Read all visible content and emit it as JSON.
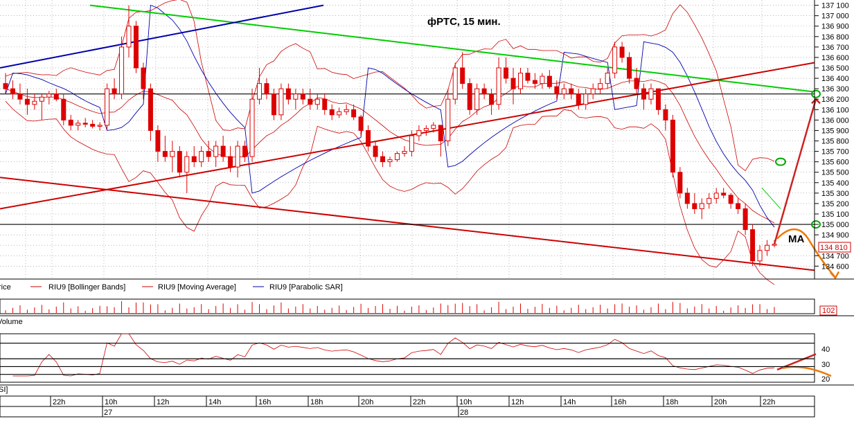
{
  "chart_data": [
    {
      "type": "candlestick",
      "title": "фРТС,  15 мин.",
      "y_axis": {
        "range": [
          134520,
          137120
        ],
        "ticks": [
          "137 100",
          "137 000",
          "136 900",
          "136 800",
          "136 700",
          "136 600",
          "136 500",
          "136 400",
          "136 300",
          "136 200",
          "136 100",
          "136 000",
          "135 900",
          "135 800",
          "135 700",
          "135 600",
          "135 500",
          "135 400",
          "135 300",
          "135 200",
          "135 100",
          "135 000",
          "134 900",
          "134 810",
          "134 700",
          "134 600"
        ],
        "current_price_label": "134 810",
        "current_price": 134810
      },
      "legend": [
        {
          "label": "rice",
          "color": "#cc0000"
        },
        {
          "label": "RIU9 [Bollinger Bands]",
          "color": "#cc0000"
        },
        {
          "label": "RIU9 [Moving Average]",
          "color": "#cc0000"
        },
        {
          "label": "RIU9 [Parabolic SAR]",
          "color": "#0000aa"
        }
      ],
      "annotation": "MA",
      "series": [
        {
          "name": "RIU9 [Moving Average]",
          "color": "#cc0000",
          "kind": "line",
          "close_approx": [
            136400,
            136300,
            136250,
            136200,
            136150,
            136100,
            136050,
            136000,
            136000,
            135950,
            135900,
            135900,
            136000,
            136100,
            136200,
            136250,
            136250,
            136300,
            136350,
            136350,
            136300,
            136250,
            136200,
            136150,
            136100,
            136000,
            135950,
            135900,
            135850,
            135800,
            135780,
            135760,
            135750,
            135760,
            135780,
            135800,
            135820,
            135850,
            135900,
            135950,
            136000,
            136050,
            136100,
            136150,
            136200,
            136200,
            136200,
            136220,
            136200,
            136180,
            136160,
            136150,
            136130,
            136110,
            136100,
            136080,
            136050,
            136000,
            135900,
            135800,
            135650,
            135500,
            135400,
            135300,
            135200,
            135150,
            135100,
            135050,
            135000,
            134950,
            134900,
            134850
          ]
        }
      ],
      "ohlc": [
        {
          "o": 136350,
          "h": 136450,
          "l": 136250,
          "c": 136300
        },
        {
          "o": 136300,
          "h": 136380,
          "l": 136200,
          "c": 136250
        },
        {
          "o": 136250,
          "h": 136350,
          "l": 136150,
          "c": 136200
        },
        {
          "o": 136200,
          "h": 136300,
          "l": 136050,
          "c": 136150
        },
        {
          "o": 136150,
          "h": 136250,
          "l": 136100,
          "c": 136180
        },
        {
          "o": 136180,
          "h": 136250,
          "l": 136000,
          "c": 136220
        },
        {
          "o": 136220,
          "h": 136280,
          "l": 136150,
          "c": 136250
        },
        {
          "o": 136250,
          "h": 136300,
          "l": 136180,
          "c": 136200
        },
        {
          "o": 136200,
          "h": 136250,
          "l": 135950,
          "c": 136000
        },
        {
          "o": 136000,
          "h": 136050,
          "l": 135900,
          "c": 135950
        },
        {
          "o": 135950,
          "h": 136000,
          "l": 135900,
          "c": 135970
        },
        {
          "o": 135970,
          "h": 136020,
          "l": 135930,
          "c": 135960
        },
        {
          "o": 135960,
          "h": 136000,
          "l": 135920,
          "c": 135940
        },
        {
          "o": 135940,
          "h": 135980,
          "l": 135900,
          "c": 135950
        },
        {
          "o": 135950,
          "h": 136350,
          "l": 135900,
          "c": 136300
        },
        {
          "o": 136300,
          "h": 136400,
          "l": 136200,
          "c": 136250
        },
        {
          "o": 136250,
          "h": 136800,
          "l": 136200,
          "c": 136700
        },
        {
          "o": 136700,
          "h": 137100,
          "l": 136600,
          "c": 136900
        },
        {
          "o": 136900,
          "h": 136950,
          "l": 136450,
          "c": 136500
        },
        {
          "o": 136500,
          "h": 136550,
          "l": 136200,
          "c": 136300
        },
        {
          "o": 136300,
          "h": 136350,
          "l": 135800,
          "c": 135900
        },
        {
          "o": 135900,
          "h": 135950,
          "l": 135600,
          "c": 135700
        },
        {
          "o": 135700,
          "h": 135850,
          "l": 135600,
          "c": 135650
        },
        {
          "o": 135650,
          "h": 135800,
          "l": 135500,
          "c": 135700
        },
        {
          "o": 135700,
          "h": 135750,
          "l": 135450,
          "c": 135500
        },
        {
          "o": 135500,
          "h": 135700,
          "l": 135300,
          "c": 135650
        },
        {
          "o": 135650,
          "h": 135750,
          "l": 135550,
          "c": 135600
        },
        {
          "o": 135600,
          "h": 135750,
          "l": 135550,
          "c": 135700
        },
        {
          "o": 135700,
          "h": 135800,
          "l": 135600,
          "c": 135650
        },
        {
          "o": 135650,
          "h": 135800,
          "l": 135550,
          "c": 135750
        },
        {
          "o": 135750,
          "h": 135850,
          "l": 135600,
          "c": 135650
        },
        {
          "o": 135650,
          "h": 135750,
          "l": 135500,
          "c": 135550
        },
        {
          "o": 135550,
          "h": 135800,
          "l": 135450,
          "c": 135750
        },
        {
          "o": 135750,
          "h": 135800,
          "l": 135600,
          "c": 135650
        },
        {
          "o": 135650,
          "h": 136300,
          "l": 135600,
          "c": 136200
        },
        {
          "o": 136200,
          "h": 136500,
          "l": 136150,
          "c": 136350
        },
        {
          "o": 136350,
          "h": 136400,
          "l": 136200,
          "c": 136250
        },
        {
          "o": 136250,
          "h": 136300,
          "l": 136000,
          "c": 136050
        },
        {
          "o": 136050,
          "h": 136350,
          "l": 136000,
          "c": 136300
        },
        {
          "o": 136300,
          "h": 136350,
          "l": 136150,
          "c": 136200
        },
        {
          "o": 136200,
          "h": 136300,
          "l": 136100,
          "c": 136250
        },
        {
          "o": 136250,
          "h": 136300,
          "l": 136150,
          "c": 136200
        },
        {
          "o": 136200,
          "h": 136300,
          "l": 136100,
          "c": 136150
        },
        {
          "o": 136150,
          "h": 136250,
          "l": 136100,
          "c": 136200
        },
        {
          "o": 136200,
          "h": 136250,
          "l": 136050,
          "c": 136100
        },
        {
          "o": 136100,
          "h": 136150,
          "l": 136000,
          "c": 136050
        },
        {
          "o": 136050,
          "h": 136120,
          "l": 136020,
          "c": 136080
        },
        {
          "o": 136080,
          "h": 136150,
          "l": 136050,
          "c": 136100
        },
        {
          "o": 136100,
          "h": 136150,
          "l": 136000,
          "c": 136030
        },
        {
          "o": 136030,
          "h": 136050,
          "l": 135850,
          "c": 135900
        },
        {
          "o": 135900,
          "h": 135950,
          "l": 135700,
          "c": 135750
        },
        {
          "o": 135750,
          "h": 135800,
          "l": 135600,
          "c": 135650
        },
        {
          "o": 135650,
          "h": 135700,
          "l": 135550,
          "c": 135600
        },
        {
          "o": 135600,
          "h": 135650,
          "l": 135550,
          "c": 135620
        },
        {
          "o": 135620,
          "h": 135700,
          "l": 135600,
          "c": 135680
        },
        {
          "o": 135680,
          "h": 135750,
          "l": 135650,
          "c": 135700
        },
        {
          "o": 135700,
          "h": 135900,
          "l": 135650,
          "c": 135850
        },
        {
          "o": 135850,
          "h": 135950,
          "l": 135800,
          "c": 135900
        },
        {
          "o": 135900,
          "h": 135950,
          "l": 135850,
          "c": 135920
        },
        {
          "o": 135920,
          "h": 135980,
          "l": 135880,
          "c": 135950
        },
        {
          "o": 135950,
          "h": 135950,
          "l": 135650,
          "c": 135800
        },
        {
          "o": 135800,
          "h": 136300,
          "l": 135750,
          "c": 136200
        },
        {
          "o": 136200,
          "h": 136550,
          "l": 136150,
          "c": 136500
        },
        {
          "o": 136500,
          "h": 136650,
          "l": 136300,
          "c": 136350
        },
        {
          "o": 136350,
          "h": 136400,
          "l": 136050,
          "c": 136100
        },
        {
          "o": 136100,
          "h": 136350,
          "l": 136050,
          "c": 136300
        },
        {
          "o": 136300,
          "h": 136350,
          "l": 136200,
          "c": 136250
        },
        {
          "o": 136250,
          "h": 136300,
          "l": 136050,
          "c": 136150
        },
        {
          "o": 136150,
          "h": 136600,
          "l": 136100,
          "c": 136500
        },
        {
          "o": 136500,
          "h": 136600,
          "l": 136350,
          "c": 136400
        },
        {
          "o": 136400,
          "h": 136500,
          "l": 136150,
          "c": 136300
        },
        {
          "o": 136300,
          "h": 136500,
          "l": 136250,
          "c": 136450
        },
        {
          "o": 136450,
          "h": 136500,
          "l": 136350,
          "c": 136380
        },
        {
          "o": 136380,
          "h": 136450,
          "l": 136300,
          "c": 136350
        },
        {
          "o": 136350,
          "h": 136450,
          "l": 136300,
          "c": 136420
        },
        {
          "o": 136420,
          "h": 136480,
          "l": 136300,
          "c": 136320
        },
        {
          "o": 136320,
          "h": 136380,
          "l": 136200,
          "c": 136250
        },
        {
          "o": 136250,
          "h": 136350,
          "l": 136200,
          "c": 136300
        },
        {
          "o": 136300,
          "h": 136350,
          "l": 136200,
          "c": 136250
        },
        {
          "o": 136250,
          "h": 136300,
          "l": 136100,
          "c": 136150
        },
        {
          "o": 136150,
          "h": 136300,
          "l": 136100,
          "c": 136250
        },
        {
          "o": 136250,
          "h": 136350,
          "l": 136200,
          "c": 136300
        },
        {
          "o": 136300,
          "h": 136400,
          "l": 136250,
          "c": 136350
        },
        {
          "o": 136350,
          "h": 136500,
          "l": 136300,
          "c": 136450
        },
        {
          "o": 136450,
          "h": 136750,
          "l": 136400,
          "c": 136700
        },
        {
          "o": 136700,
          "h": 136750,
          "l": 136550,
          "c": 136600
        },
        {
          "o": 136600,
          "h": 136650,
          "l": 136350,
          "c": 136400
        },
        {
          "o": 136400,
          "h": 136500,
          "l": 136250,
          "c": 136300
        },
        {
          "o": 136300,
          "h": 136350,
          "l": 136100,
          "c": 136200
        },
        {
          "o": 136200,
          "h": 136350,
          "l": 136150,
          "c": 136300
        },
        {
          "o": 136300,
          "h": 136300,
          "l": 136050,
          "c": 136100
        },
        {
          "o": 136100,
          "h": 136150,
          "l": 135900,
          "c": 136000
        },
        {
          "o": 136000,
          "h": 136050,
          "l": 135450,
          "c": 135500
        },
        {
          "o": 135500,
          "h": 135550,
          "l": 135250,
          "c": 135300
        },
        {
          "o": 135300,
          "h": 135350,
          "l": 135150,
          "c": 135200
        },
        {
          "o": 135200,
          "h": 135300,
          "l": 135100,
          "c": 135150
        },
        {
          "o": 135150,
          "h": 135250,
          "l": 135050,
          "c": 135200
        },
        {
          "o": 135200,
          "h": 135300,
          "l": 135150,
          "c": 135250
        },
        {
          "o": 135250,
          "h": 135350,
          "l": 135200,
          "c": 135300
        },
        {
          "o": 135300,
          "h": 135350,
          "l": 135250,
          "c": 135280
        },
        {
          "o": 135280,
          "h": 135300,
          "l": 135150,
          "c": 135200
        },
        {
          "o": 135200,
          "h": 135250,
          "l": 135100,
          "c": 135150
        },
        {
          "o": 135150,
          "h": 135200,
          "l": 134900,
          "c": 134950
        },
        {
          "o": 134950,
          "h": 135000,
          "l": 134600,
          "c": 134650
        },
        {
          "o": 134650,
          "h": 134800,
          "l": 134600,
          "c": 134750
        },
        {
          "o": 134750,
          "h": 134850,
          "l": 134700,
          "c": 134800
        },
        {
          "o": 134800,
          "h": 134850,
          "l": 134780,
          "c": 134810
        }
      ],
      "horizontal_levels": [
        136250,
        135000
      ],
      "trendlines": [
        {
          "color": "#00cc00",
          "from_price": 137100,
          "to_price": 136270
        },
        {
          "color": "#0000aa",
          "from_price": 136500,
          "to_price": 137100
        },
        {
          "color": "#cc0000",
          "from_price": 135150,
          "to_price": 136550
        },
        {
          "color": "#cc0000",
          "from_price": 135450,
          "to_price": 134560
        }
      ],
      "projection": [
        {
          "color": "#cc2222",
          "direction": "up",
          "target_price": 136200
        },
        {
          "color": "#ee7700",
          "direction": "down",
          "target_price": 134500
        }
      ]
    },
    {
      "type": "bar",
      "name": "Volume",
      "value_label": "102"
    },
    {
      "type": "line",
      "name": "RSI",
      "label": "SI]",
      "levels": [
        40,
        30,
        20
      ],
      "tick_labels": [
        "40",
        "30",
        "20"
      ]
    }
  ],
  "x_axis": {
    "time_labels": [
      "22h",
      "10h",
      "12h",
      "14h",
      "16h",
      "18h",
      "20h",
      "22h",
      "10h",
      "12h",
      "14h",
      "16h",
      "18h",
      "20h",
      "22h"
    ],
    "date_labels": [
      "27",
      "28"
    ]
  },
  "colors": {
    "candle": "#dd0000",
    "bollinger": "#cc0000",
    "sar": "#0000aa",
    "grid": "#888888",
    "green_line": "#00cc00",
    "orange": "#ee7700"
  }
}
